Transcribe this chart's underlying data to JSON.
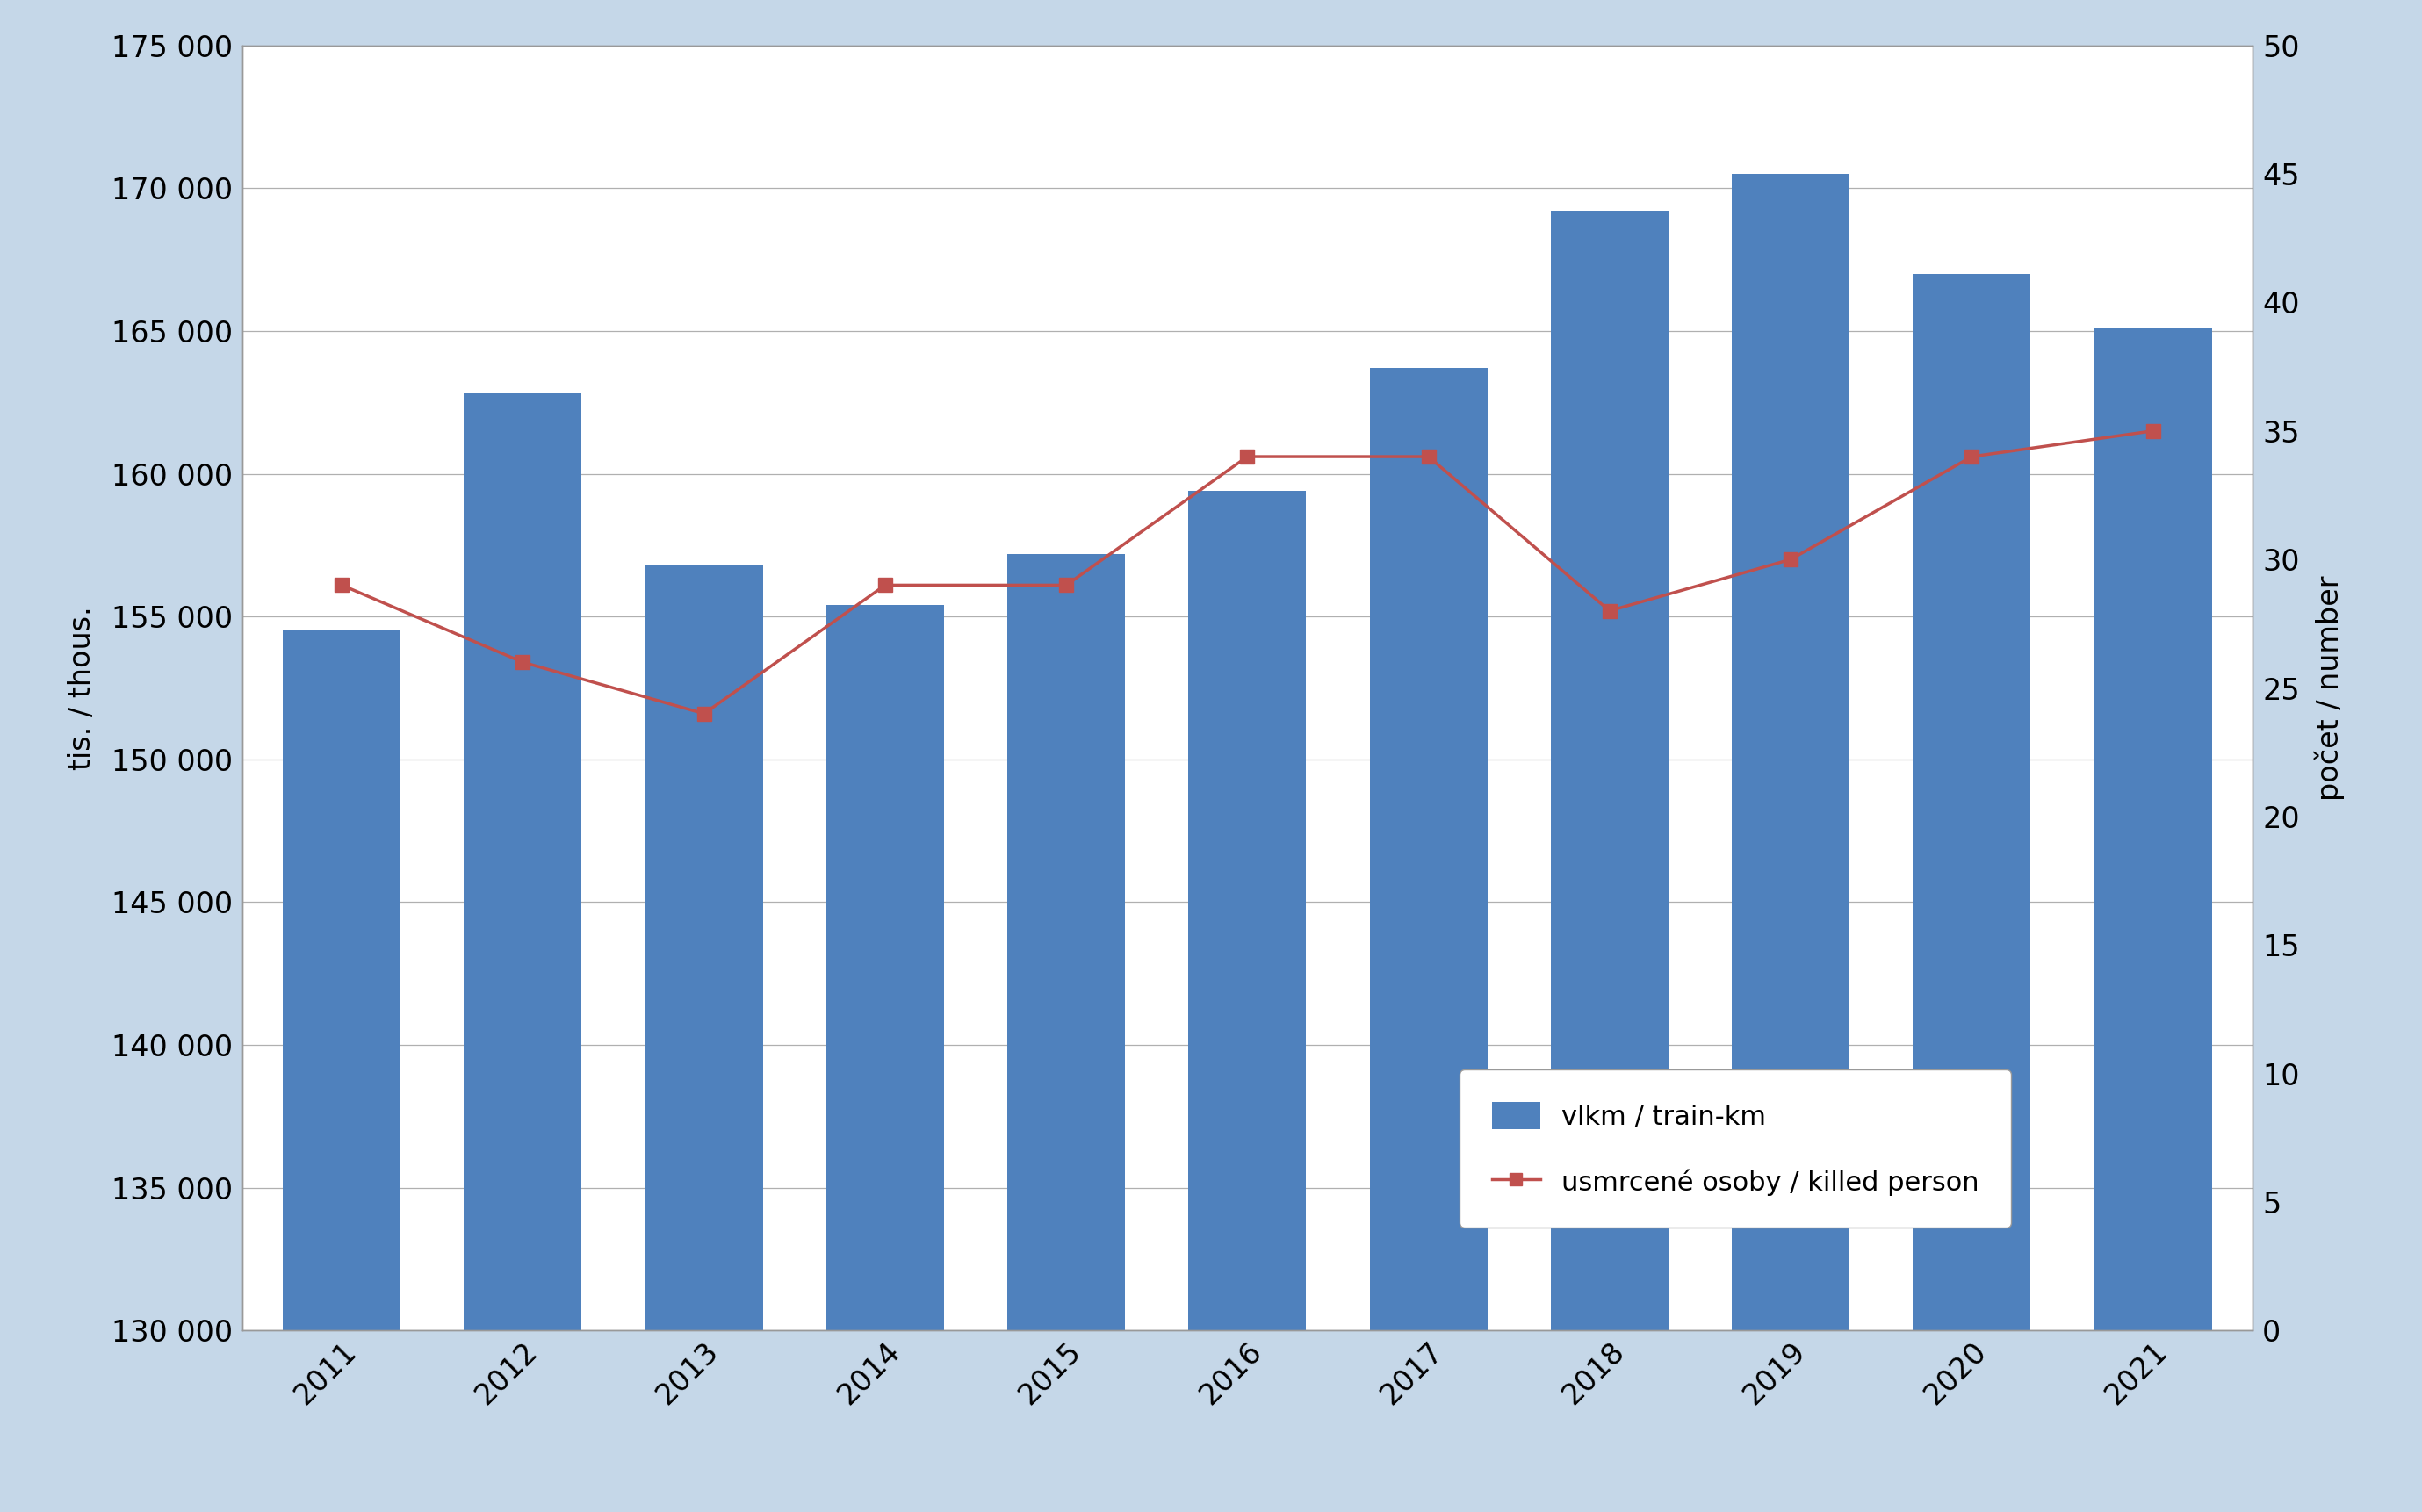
{
  "years": [
    2011,
    2012,
    2013,
    2014,
    2015,
    2016,
    2017,
    2018,
    2019,
    2020,
    2021
  ],
  "train_km": [
    154500,
    162800,
    156800,
    155400,
    157200,
    159400,
    163700,
    169200,
    170500,
    167000,
    165100
  ],
  "killed": [
    29,
    26,
    24,
    29,
    29,
    34,
    34,
    28,
    30,
    34,
    35
  ],
  "bar_color": "#4F81BD",
  "line_color": "#C0504D",
  "background_color": "#C5D7E8",
  "plot_background": "#FFFFFF",
  "ylabel_left": "tis. / thous.",
  "ylabel_right": "počet / number",
  "legend_bar": "vlkm / train-km",
  "legend_line": "usmrcené osoby / killed person",
  "ylim_left": [
    130000,
    175000
  ],
  "ylim_right": [
    0,
    50
  ],
  "yticks_left": [
    130000,
    135000,
    140000,
    145000,
    150000,
    155000,
    160000,
    165000,
    170000,
    175000
  ],
  "yticks_right": [
    0,
    5,
    10,
    15,
    20,
    25,
    30,
    35,
    40,
    45,
    50
  ],
  "bar_width": 0.65,
  "tick_fontsize": 24,
  "label_fontsize": 24,
  "legend_fontsize": 22
}
